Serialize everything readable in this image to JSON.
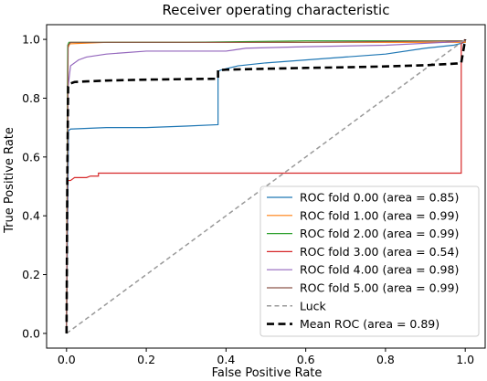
{
  "chart_data": {
    "type": "line",
    "title": "Receiver operating characteristic",
    "xlabel": "False Positive Rate",
    "ylabel": "True Positive Rate",
    "xlim": [
      -0.05,
      1.05
    ],
    "ylim": [
      -0.05,
      1.05
    ],
    "xticks": [
      "0.0",
      "0.2",
      "0.4",
      "0.6",
      "0.8",
      "1.0"
    ],
    "yticks": [
      "0.0",
      "0.2",
      "0.4",
      "0.6",
      "0.8",
      "1.0"
    ],
    "grid": false,
    "legend_position": "lower-right",
    "series": [
      {
        "name": "ROC fold 0.00 (area = 0.85)",
        "color": "#1f77b4",
        "style": "solid",
        "x": [
          0,
          0.005,
          0.01,
          0.1,
          0.2,
          0.3,
          0.38,
          0.38,
          0.385,
          0.4,
          0.43,
          0.5,
          0.6,
          0.7,
          0.8,
          0.9,
          0.97,
          1.0,
          1.0
        ],
        "y": [
          0,
          0.69,
          0.695,
          0.7,
          0.7,
          0.705,
          0.71,
          0.89,
          0.895,
          0.9,
          0.91,
          0.92,
          0.93,
          0.94,
          0.95,
          0.97,
          0.98,
          0.99,
          1.0
        ]
      },
      {
        "name": "ROC fold 1.00 (area = 0.99)",
        "color": "#ff7f0e",
        "style": "solid",
        "x": [
          0,
          0.003,
          0.008,
          0.1,
          0.3,
          0.6,
          1.0,
          1.0
        ],
        "y": [
          0,
          0.97,
          0.985,
          0.99,
          0.99,
          0.99,
          0.99,
          1.0
        ]
      },
      {
        "name": "ROC fold 2.00 (area = 0.99)",
        "color": "#2ca02c",
        "style": "solid",
        "x": [
          0,
          0.003,
          0.006,
          0.1,
          0.3,
          0.6,
          1.0,
          1.0
        ],
        "y": [
          0,
          0.98,
          0.99,
          0.99,
          0.99,
          0.995,
          0.995,
          1.0
        ]
      },
      {
        "name": "ROC fold 3.00 (area = 0.54)",
        "color": "#d62728",
        "style": "solid",
        "x": [
          0,
          0.002,
          0.01,
          0.02,
          0.05,
          0.06,
          0.08,
          0.08,
          0.3,
          0.6,
          0.99,
          0.99,
          1.0
        ],
        "y": [
          0,
          0.52,
          0.52,
          0.53,
          0.53,
          0.535,
          0.535,
          0.545,
          0.545,
          0.545,
          0.545,
          0.985,
          1.0
        ]
      },
      {
        "name": "ROC fold 4.00 (area = 0.98)",
        "color": "#9467bd",
        "style": "solid",
        "x": [
          0,
          0.004,
          0.01,
          0.03,
          0.05,
          0.1,
          0.2,
          0.4,
          0.45,
          0.6,
          0.8,
          0.95,
          1.0,
          1.0
        ],
        "y": [
          0,
          0.84,
          0.91,
          0.93,
          0.94,
          0.95,
          0.96,
          0.96,
          0.97,
          0.975,
          0.98,
          0.99,
          0.995,
          1.0
        ]
      },
      {
        "name": "ROC fold 5.00 (area = 0.99)",
        "color": "#8c564b",
        "style": "solid",
        "x": [
          0,
          0.004,
          0.01,
          0.2,
          0.6,
          1.0,
          1.0
        ],
        "y": [
          0,
          0.98,
          0.99,
          0.99,
          0.99,
          0.995,
          1.0
        ]
      },
      {
        "name": "Luck",
        "color": "#999999",
        "style": "dashed",
        "x": [
          0,
          1
        ],
        "y": [
          0,
          1
        ]
      },
      {
        "name": "Mean ROC (area = 0.89)",
        "color": "#000000",
        "style": "dashed-bold",
        "x": [
          0,
          0.002,
          0.004,
          0.01,
          0.02,
          0.05,
          0.1,
          0.2,
          0.3,
          0.38,
          0.38,
          0.4,
          0.5,
          0.6,
          0.7,
          0.8,
          0.9,
          0.98,
          0.99,
          1.0
        ],
        "y": [
          0,
          0.54,
          0.84,
          0.85,
          0.855,
          0.857,
          0.86,
          0.863,
          0.865,
          0.866,
          0.895,
          0.897,
          0.9,
          0.903,
          0.905,
          0.908,
          0.912,
          0.918,
          0.92,
          1.0
        ]
      }
    ]
  }
}
